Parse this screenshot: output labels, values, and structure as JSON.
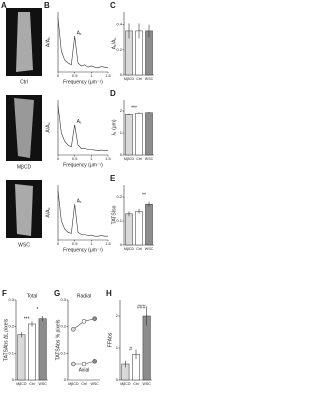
{
  "images": {
    "panel": "A",
    "labels": [
      "Ctrl",
      "MβCD",
      "WSC"
    ]
  },
  "chart_data": [
    {
      "type": "line",
      "panel": "B",
      "ylabel": "A/A₀",
      "xlabel": "Frequency (μm⁻¹)",
      "annotation": "A₁",
      "x": [
        0,
        0.1,
        0.2,
        0.3,
        0.4,
        0.5,
        0.6,
        0.7,
        0.8,
        0.9,
        1.0,
        1.1,
        1.2,
        1.3,
        1.4,
        1.5
      ],
      "series": [
        {
          "color": "#333333",
          "values": [
            0.9,
            0.35,
            0.2,
            0.15,
            0.12,
            0.6,
            0.15,
            0.1,
            0.12,
            0.08,
            0.1,
            0.08,
            0.07,
            0.09,
            0.08,
            0.07
          ]
        }
      ],
      "xlim": [
        0,
        1.5
      ],
      "xticks": [
        0,
        0.5,
        1,
        1.5
      ],
      "ylim": [
        0,
        1
      ]
    },
    {
      "type": "line",
      "ylabel": "A/A₀",
      "xlabel": "Frequency (μm⁻¹)",
      "annotation": "A₁",
      "x": [
        0,
        0.1,
        0.2,
        0.3,
        0.4,
        0.5,
        0.6,
        0.7,
        0.8,
        0.9,
        1.0,
        1.1,
        1.2,
        1.3,
        1.4,
        1.5
      ],
      "series": [
        {
          "color": "#333333",
          "values": [
            0.9,
            0.4,
            0.25,
            0.18,
            0.15,
            0.55,
            0.18,
            0.12,
            0.12,
            0.1,
            0.1,
            0.09,
            0.08,
            0.09,
            0.08,
            0.08
          ]
        }
      ],
      "xlim": [
        0,
        1.5
      ],
      "xticks": [
        0,
        0.5,
        1,
        1.5
      ],
      "ylim": [
        0,
        1
      ]
    },
    {
      "type": "line",
      "ylabel": "A/A₀",
      "xlabel": "Frequency (μm⁻¹)",
      "annotation": "A₁",
      "x": [
        0,
        0.1,
        0.2,
        0.3,
        0.4,
        0.5,
        0.6,
        0.7,
        0.8,
        0.9,
        1.0,
        1.1,
        1.2,
        1.3,
        1.4,
        1.5
      ],
      "series": [
        {
          "color": "#333333",
          "values": [
            0.9,
            0.35,
            0.2,
            0.14,
            0.12,
            0.65,
            0.14,
            0.1,
            0.1,
            0.08,
            0.09,
            0.07,
            0.07,
            0.08,
            0.07,
            0.07
          ]
        }
      ],
      "xlim": [
        0,
        1.5
      ],
      "xticks": [
        0,
        0.5,
        1,
        1.5
      ],
      "ylim": [
        0,
        1
      ]
    },
    {
      "type": "bar",
      "panel": "C",
      "ylabel": "A₁/A₀",
      "categories": [
        "MβCD",
        "Ctrl",
        "WSC"
      ],
      "colors": [
        "#d9d9d9",
        "#ffffff",
        "#8c8c8c"
      ],
      "values": [
        0.35,
        0.35,
        0.35
      ],
      "errors": [
        0.06,
        0.06,
        0.05
      ],
      "ylim": [
        0,
        0.5
      ],
      "yticks": [
        0,
        0.2,
        0.4
      ],
      "annotations": []
    },
    {
      "type": "bar",
      "panel": "D",
      "ylabel": "λ₁ (μm)",
      "categories": [
        "MβCD",
        "Ctrl",
        "WSC"
      ],
      "colors": [
        "#d9d9d9",
        "#ffffff",
        "#8c8c8c"
      ],
      "values": [
        1.85,
        1.9,
        1.92
      ],
      "errors": [
        0.03,
        0.03,
        0.03
      ],
      "ylim": [
        0,
        2.5
      ],
      "yticks": [
        0,
        1,
        2
      ],
      "annotations": [
        "***"
      ]
    },
    {
      "type": "bar",
      "panel": "E",
      "ylabel": "TATSIso",
      "categories": [
        "MβCD",
        "Ctrl",
        "WSC"
      ],
      "colors": [
        "#d9d9d9",
        "#ffffff",
        "#8c8c8c"
      ],
      "values": [
        0.13,
        0.14,
        0.17
      ],
      "errors": [
        0.01,
        0.01,
        0.01
      ],
      "ylim": [
        0,
        0.25
      ],
      "yticks": [
        0,
        0.1,
        0.2
      ],
      "annotations": [
        "",
        "**"
      ]
    },
    {
      "type": "bar",
      "panel": "F",
      "ylabel": "TATSAbs ΔL pixels",
      "subtitle": "Total",
      "categories": [
        "MβCD",
        "Ctrl",
        "WSC"
      ],
      "colors": [
        "#d9d9d9",
        "#ffffff",
        "#8c8c8c"
      ],
      "values": [
        0.17,
        0.21,
        0.23
      ],
      "errors": [
        0.01,
        0.01,
        0.01
      ],
      "ylim": [
        0,
        0.3
      ],
      "yticks": [
        0,
        0.1,
        0.2,
        0.3
      ],
      "annotations": [
        "***",
        "*"
      ]
    },
    {
      "type": "line",
      "panel": "G",
      "ylabel": "TATSAbs % pixels",
      "subtitle": "Radial",
      "categories": [
        "MβCD",
        "Ctrl",
        "WSC"
      ],
      "series": [
        {
          "name": "Radial",
          "color": "#555555",
          "values": [
            0.19,
            0.22,
            0.23
          ]
        },
        {
          "name": "Axial",
          "color": "#555555",
          "values": [
            0.06,
            0.06,
            0.07
          ]
        }
      ],
      "ylim": [
        0,
        0.3
      ],
      "yticks": [
        0,
        0.1,
        0.2,
        0.3
      ]
    },
    {
      "type": "bar",
      "panel": "H",
      "ylabel": "FFAbs",
      "categories": [
        "MβCD",
        "Ctrl",
        "WSC"
      ],
      "colors": [
        "#d9d9d9",
        "#ffffff",
        "#8c8c8c"
      ],
      "values": [
        0.5,
        0.8,
        2.0
      ],
      "errors": [
        0.1,
        0.15,
        0.3
      ],
      "ylim": [
        0,
        2.5
      ],
      "yticks": [
        0,
        1,
        2
      ],
      "annotations": [
        "#",
        "###"
      ]
    }
  ]
}
